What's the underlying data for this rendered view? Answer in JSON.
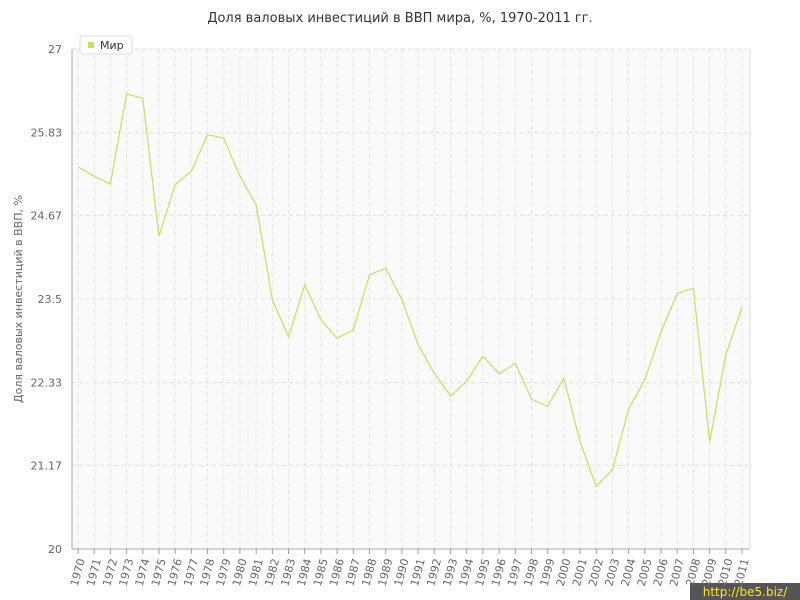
{
  "chart_data": {
    "type": "line",
    "title": "Доля валовых инвестиций в ВВП мира, %, 1970-2011 гг.",
    "y_label": "Доля валовых инвестиций в ВВП, %",
    "categories": [
      "1970",
      "1971",
      "1972",
      "1973",
      "1974",
      "1975",
      "1976",
      "1977",
      "1978",
      "1979",
      "1980",
      "1981",
      "1982",
      "1983",
      "1984",
      "1985",
      "1986",
      "1987",
      "1988",
      "1989",
      "1990",
      "1991",
      "1992",
      "1993",
      "1994",
      "1995",
      "1996",
      "1997",
      "1998",
      "1999",
      "2000",
      "2001",
      "2002",
      "2003",
      "2004",
      "2005",
      "2006",
      "2007",
      "2008",
      "2009",
      "2010",
      "2011"
    ],
    "series": [
      {
        "name": "Мир",
        "color": "#c5e05a",
        "values": [
          25.35,
          25.22,
          25.11,
          26.37,
          26.31,
          24.38,
          25.1,
          25.29,
          25.8,
          25.75,
          25.22,
          24.82,
          23.49,
          22.97,
          23.7,
          23.21,
          22.95,
          23.07,
          23.84,
          23.93,
          23.49,
          22.86,
          22.46,
          22.14,
          22.35,
          22.7,
          22.45,
          22.6,
          22.1,
          22.0,
          22.39,
          21.5,
          20.88,
          21.11,
          21.96,
          22.37,
          23.04,
          23.58,
          23.65,
          21.5,
          22.72,
          23.39
        ]
      }
    ],
    "ylim": [
      20,
      27
    ],
    "yticks": [
      20,
      21.17,
      22.33,
      23.5,
      24.67,
      25.83,
      27
    ],
    "grid": true,
    "legend": "top-left",
    "watermark": "http://be5.biz/"
  }
}
